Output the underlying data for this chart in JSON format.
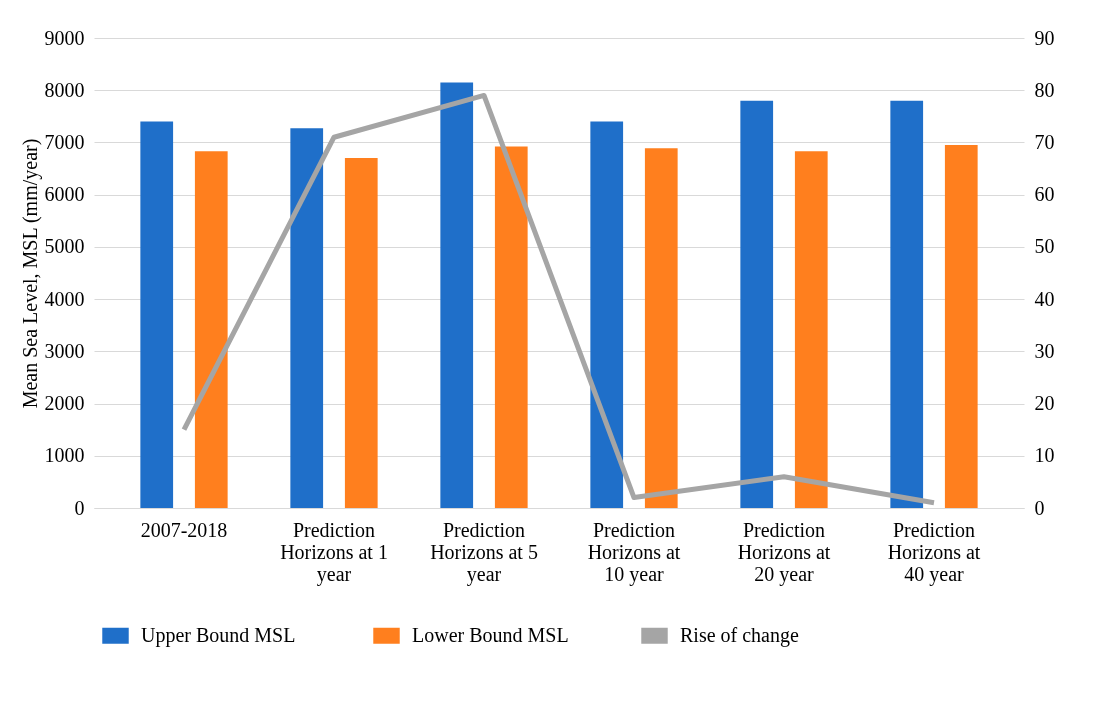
{
  "chart_data": {
    "type": "bar",
    "categories": [
      "2007-2018",
      "Prediction Horizons at 1 year",
      "Prediction Horizons at 5 year",
      "Prediction Horizons at 10 year",
      "Prediction Horizons at 20 year",
      "Prediction Horizons at 40 year"
    ],
    "series": [
      {
        "name": "Upper Bound  MSL",
        "color": "#1f6fc9",
        "values": [
          7400,
          7270,
          8150,
          7400,
          7800,
          7800
        ]
      },
      {
        "name": "Lower Bound MSL",
        "color": "#ff7f1e",
        "values": [
          6830,
          6700,
          6920,
          6890,
          6830,
          6950
        ]
      },
      {
        "name": "Rise of change",
        "color": "#a5a5a5",
        "type": "line",
        "axis": "y2",
        "values": [
          15,
          71,
          79,
          2,
          6,
          1
        ]
      }
    ],
    "ylabel": "Mean Sea Level, MSL (mm/year)",
    "ylim": [
      0,
      9000
    ],
    "yticks": [
      0,
      1000,
      2000,
      3000,
      4000,
      5000,
      6000,
      7000,
      8000,
      9000
    ],
    "y2lim": [
      0,
      90
    ],
    "y2ticks": [
      0,
      10,
      20,
      30,
      40,
      50,
      60,
      70,
      80,
      90
    ],
    "grid": "y",
    "legend": "bottom",
    "line_style": "solid"
  }
}
